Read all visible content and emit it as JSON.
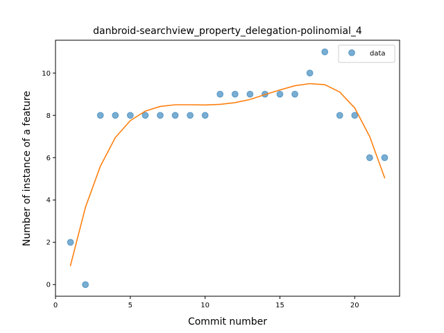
{
  "chart_data": {
    "type": "scatter",
    "title": "danbroid-searchview_property_delegation-polinomial_4",
    "xlabel": "Commit number",
    "ylabel": "Number of instance of a feature",
    "xlim": [
      0,
      23
    ],
    "ylim": [
      -0.55,
      11.55
    ],
    "xticks": [
      0,
      5,
      10,
      15,
      20
    ],
    "yticks": [
      0,
      2,
      4,
      6,
      8,
      10
    ],
    "grid": false,
    "legend_position": "top-right",
    "series": [
      {
        "name": "data",
        "kind": "scatter",
        "color": "#1f77b4",
        "x": [
          1,
          2,
          3,
          4,
          5,
          6,
          7,
          8,
          9,
          10,
          11,
          12,
          13,
          14,
          15,
          16,
          17,
          18,
          19,
          20,
          21,
          22
        ],
        "y": [
          2,
          0,
          8,
          8,
          8,
          8,
          8,
          8,
          8,
          8,
          9,
          9,
          9,
          9,
          9,
          9,
          10,
          11,
          8,
          8,
          6,
          6
        ]
      },
      {
        "kind": "line",
        "color": "#ff7f0e",
        "x": [
          1,
          2,
          3,
          4,
          5,
          6,
          7,
          8,
          9,
          10,
          11,
          12,
          13,
          14,
          15,
          16,
          17,
          18,
          19,
          20,
          21,
          22
        ],
        "y": [
          0.9,
          3.65,
          5.6,
          6.95,
          7.75,
          8.2,
          8.42,
          8.5,
          8.5,
          8.49,
          8.52,
          8.6,
          8.75,
          8.98,
          9.2,
          9.4,
          9.5,
          9.45,
          9.1,
          8.35,
          7.0,
          5.05
        ]
      }
    ]
  }
}
